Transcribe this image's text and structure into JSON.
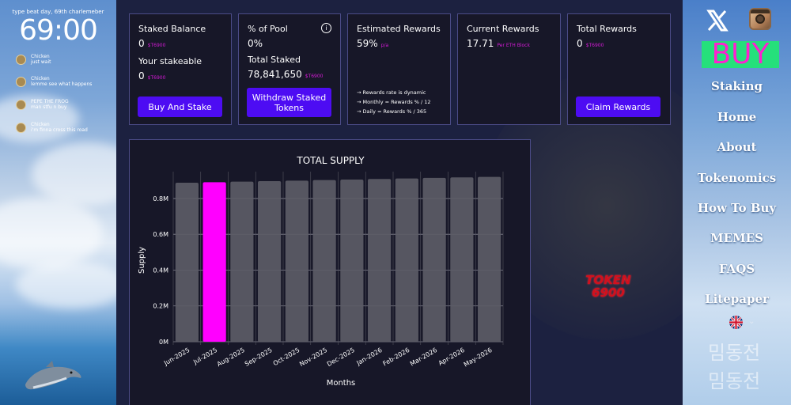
{
  "lock_screen": {
    "date": "type beat day, 69th charlemeber",
    "time": "69:00",
    "notifications": [
      {
        "sender": "Chicken",
        "message": "just wait"
      },
      {
        "sender": "Chicken",
        "message": "lemme see what happens"
      },
      {
        "sender": "PEPE THE FROG",
        "message": "man stfu n buy"
      },
      {
        "sender": "Chicken",
        "message": "i'm finna cross this road"
      }
    ]
  },
  "cards": {
    "staked_balance": {
      "title": "Staked Balance",
      "value": "0",
      "unit": "$T6900",
      "sub_title": "Your stakeable",
      "sub_value": "0",
      "sub_unit": "$T6900",
      "button": "Buy And Stake"
    },
    "pool": {
      "title": "% of Pool",
      "value": "0%",
      "sub_title": "Total Staked",
      "sub_value": "78,841,650",
      "sub_unit": "$T6900",
      "button": "Withdraw Staked Tokens",
      "info_icon": "info-icon"
    },
    "estimated": {
      "title": "Estimated Rewards",
      "value": "59%",
      "unit": "p/a",
      "notes": [
        "→ Rewards rate is dynamic",
        "→ Monthly = Rewards % / 12",
        "→ Daily = Rewards % / 365"
      ]
    },
    "current": {
      "title": "Current Rewards",
      "value": "17.71",
      "unit": "Per ETH Block"
    },
    "total": {
      "title": "Total Rewards",
      "value": "0",
      "unit": "$T6900",
      "button": "Claim Rewards"
    }
  },
  "chart_data": {
    "type": "bar",
    "title": "TOTAL SUPPLY",
    "xlabel": "Months",
    "ylabel": "Supply",
    "categories": [
      "Jun-2025",
      "Jul-2025",
      "Aug-2025",
      "Sep-2025",
      "Oct-2025",
      "Nov-2025",
      "Dec-2025",
      "Jan-2026",
      "Feb-2026",
      "Mar-2026",
      "Apr-2026",
      "May-2026"
    ],
    "values": [
      0.888,
      0.891,
      0.894,
      0.897,
      0.9,
      0.903,
      0.906,
      0.909,
      0.912,
      0.915,
      0.918,
      0.921
    ],
    "ylim": [
      0,
      0.95
    ],
    "yticks": [
      "0M",
      "0.2M",
      "0.4M",
      "0.6M",
      "0.8M"
    ],
    "ytick_values": [
      0,
      0.2,
      0.4,
      0.6,
      0.8
    ],
    "highlight_index": 1,
    "colors": {
      "bar": "#5c5c66",
      "highlight": "#ff00ff"
    },
    "grid": true
  },
  "logo": {
    "line1": "TOKEN",
    "line2": "6900"
  },
  "nav": {
    "buy": "BUY",
    "items": [
      "Staking",
      "Home",
      "About",
      "Tokenomics",
      "How To Buy",
      "MEMES",
      "FAQS",
      "Litepaper"
    ],
    "language_icon": "uk-flag-icon",
    "watermark": [
      "밈동전",
      "밈동전"
    ]
  }
}
